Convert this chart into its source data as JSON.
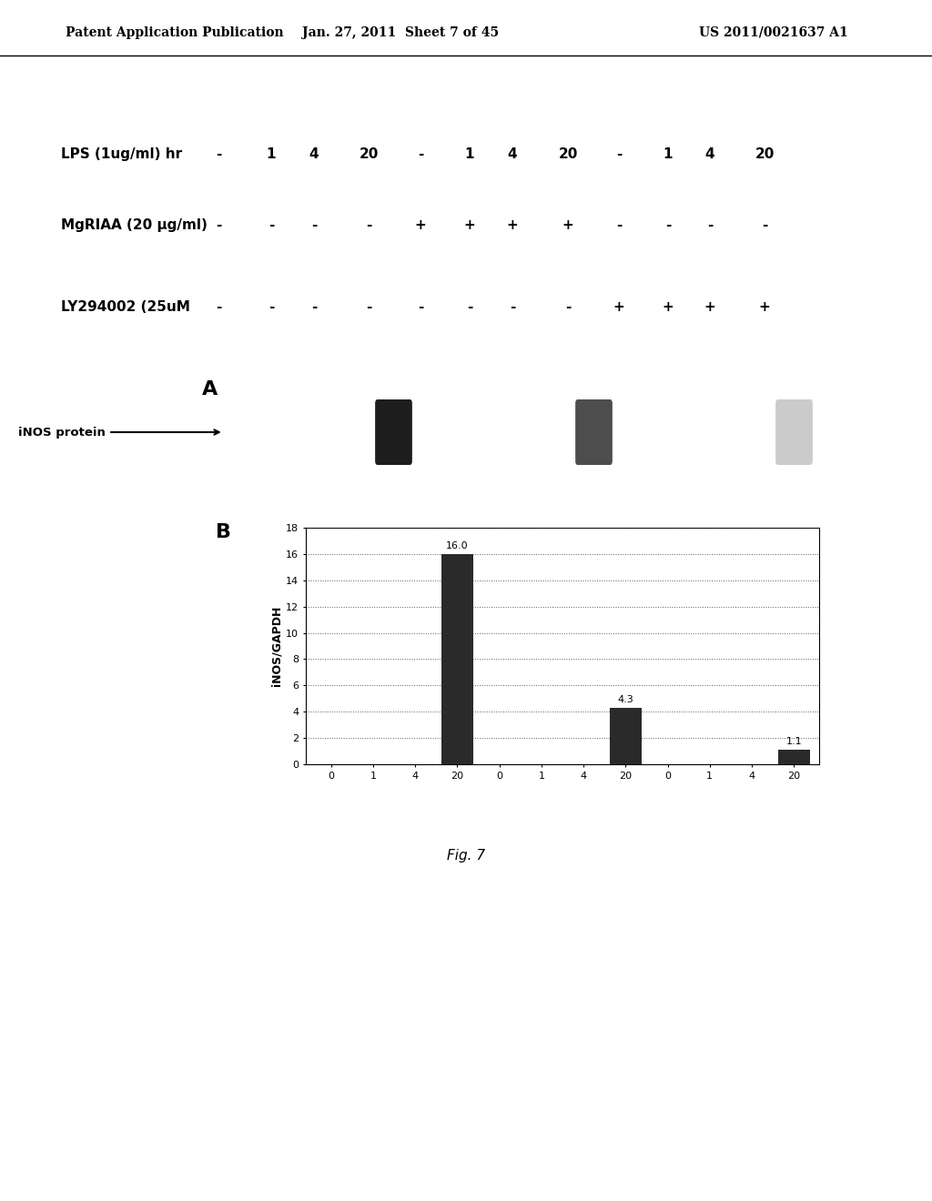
{
  "header_left": "Patent Application Publication",
  "header_center": "Jan. 27, 2011  Sheet 7 of 45",
  "header_right": "US 2011/0021637 A1",
  "row1_label": "LPS (1ug/ml) hr",
  "row2_label": "MgRIAA (20 μg/ml)",
  "row3_label": "LY294002 (25uM",
  "row1_values": [
    "-",
    "1",
    "4",
    "20",
    "-",
    "1",
    "4",
    "20",
    "-",
    "1",
    "4",
    "20"
  ],
  "row2_values": [
    "-",
    "-",
    "-",
    "-",
    "+",
    "+",
    "+",
    "+",
    "-",
    "-",
    "-",
    "-"
  ],
  "row3_values": [
    "-",
    "-",
    "-",
    "-",
    "-",
    "-",
    "-",
    "-",
    "+",
    "+",
    "+",
    "+"
  ],
  "panel_A_label": "A",
  "panel_B_label": "B",
  "inos_label": "iNOS protein",
  "ylabel": "iNOS/GAPDH",
  "bar_values": [
    0.0,
    0.0,
    0.0,
    16.0,
    0.0,
    0.0,
    0.0,
    4.3,
    0.0,
    0.0,
    0.0,
    1.1
  ],
  "bar_color": "#2a2a2a",
  "xtick_labels": [
    "0",
    "1",
    "4",
    "20",
    "0",
    "1",
    "4",
    "20",
    "0",
    "1",
    "4",
    "20"
  ],
  "ytick_values": [
    0,
    2,
    4,
    6,
    8,
    10,
    12,
    14,
    16,
    18
  ],
  "ylim": [
    0,
    18
  ],
  "fig_label": "Fig. 7",
  "bg_color": "#ffffff",
  "gel_bg": "#b8b8b8",
  "header_fontsize": 10,
  "table_fontsize": 11,
  "tick_fontsize": 8,
  "bar_annotation_fontsize": 8
}
